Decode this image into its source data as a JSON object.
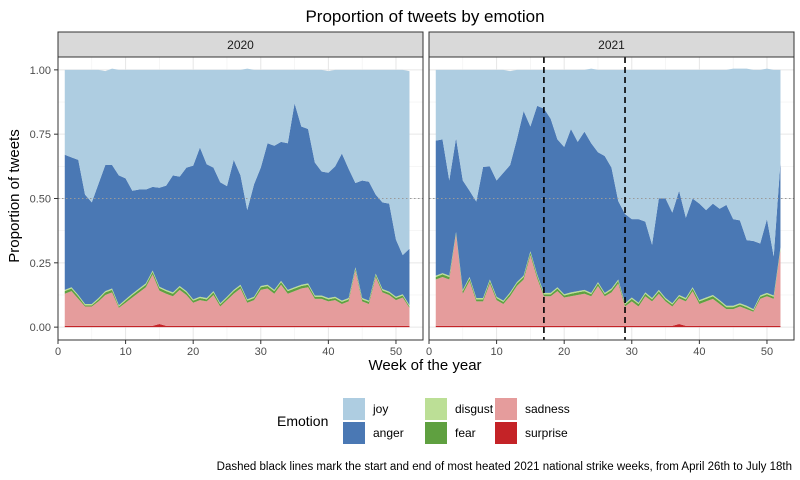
{
  "chart_data": {
    "type": "area",
    "title": "Proportion of tweets by emotion",
    "xlabel": "Week of the year",
    "ylabel": "Proportion of tweets",
    "xlim": [
      0,
      54
    ],
    "ylim": [
      -0.05,
      1.05
    ],
    "x_ticks": [
      0,
      10,
      20,
      30,
      40,
      50
    ],
    "y_ticks": [
      0.0,
      0.25,
      0.5,
      0.75,
      1.0
    ],
    "y_tick_labels": [
      "0.00",
      "0.25",
      "0.50",
      "0.75",
      "1.00"
    ],
    "reference_line_y": 0.5,
    "stack_order": [
      "surprise",
      "sadness",
      "fear",
      "disgust",
      "anger",
      "joy"
    ],
    "legend": {
      "title": "Emotion",
      "placement": "bottom",
      "items": [
        {
          "name": "joy",
          "color": "#aecde1"
        },
        {
          "name": "anger",
          "color": "#4a78b4"
        },
        {
          "name": "disgust",
          "color": "#bcdf96"
        },
        {
          "name": "fear",
          "color": "#5fa040"
        },
        {
          "name": "sadness",
          "color": "#e59c9c"
        },
        {
          "name": "surprise",
          "color": "#c42327"
        }
      ]
    },
    "panels": [
      {
        "label": "2020",
        "weeks": [
          1,
          2,
          3,
          4,
          5,
          6,
          7,
          8,
          9,
          10,
          11,
          12,
          13,
          14,
          15,
          16,
          17,
          18,
          19,
          20,
          21,
          22,
          23,
          24,
          25,
          26,
          27,
          28,
          29,
          30,
          31,
          32,
          33,
          34,
          35,
          36,
          37,
          38,
          39,
          40,
          41,
          42,
          43,
          44,
          45,
          46,
          47,
          48,
          49,
          50,
          51,
          52
        ],
        "surprise": [
          0.005,
          0.005,
          0.005,
          0.005,
          0.005,
          0.005,
          0.005,
          0.005,
          0.005,
          0.005,
          0.005,
          0.005,
          0.005,
          0.005,
          0.012,
          0.005,
          0.005,
          0.005,
          0.005,
          0.005,
          0.005,
          0.005,
          0.005,
          0.005,
          0.005,
          0.005,
          0.005,
          0.005,
          0.005,
          0.005,
          0.005,
          0.005,
          0.005,
          0.005,
          0.005,
          0.005,
          0.005,
          0.005,
          0.005,
          0.005,
          0.005,
          0.005,
          0.005,
          0.005,
          0.005,
          0.005,
          0.005,
          0.005,
          0.005,
          0.005,
          0.005,
          0.005
        ],
        "sadness": [
          0.125,
          0.135,
          0.105,
          0.075,
          0.075,
          0.095,
          0.12,
          0.13,
          0.07,
          0.09,
          0.11,
          0.13,
          0.15,
          0.2,
          0.13,
          0.125,
          0.115,
          0.14,
          0.12,
          0.09,
          0.1,
          0.095,
          0.12,
          0.075,
          0.1,
          0.125,
          0.145,
          0.09,
          0.1,
          0.14,
          0.145,
          0.125,
          0.16,
          0.125,
          0.135,
          0.145,
          0.15,
          0.105,
          0.105,
          0.095,
          0.1,
          0.085,
          0.095,
          0.215,
          0.095,
          0.085,
          0.19,
          0.13,
          0.12,
          0.1,
          0.11,
          0.07
        ],
        "fear": [
          0.01,
          0.01,
          0.01,
          0.005,
          0.005,
          0.008,
          0.01,
          0.01,
          0.005,
          0.008,
          0.01,
          0.01,
          0.01,
          0.01,
          0.01,
          0.01,
          0.01,
          0.01,
          0.01,
          0.008,
          0.008,
          0.008,
          0.01,
          0.008,
          0.008,
          0.01,
          0.01,
          0.008,
          0.008,
          0.01,
          0.01,
          0.01,
          0.01,
          0.01,
          0.01,
          0.01,
          0.01,
          0.008,
          0.008,
          0.008,
          0.008,
          0.008,
          0.008,
          0.008,
          0.008,
          0.008,
          0.008,
          0.008,
          0.008,
          0.008,
          0.008,
          0.005
        ],
        "disgust": [
          0.005,
          0.005,
          0.005,
          0.005,
          0.005,
          0.005,
          0.005,
          0.005,
          0.005,
          0.005,
          0.005,
          0.005,
          0.005,
          0.005,
          0.005,
          0.005,
          0.005,
          0.005,
          0.005,
          0.005,
          0.005,
          0.005,
          0.005,
          0.005,
          0.005,
          0.005,
          0.005,
          0.005,
          0.005,
          0.005,
          0.005,
          0.005,
          0.005,
          0.005,
          0.005,
          0.005,
          0.005,
          0.005,
          0.005,
          0.005,
          0.005,
          0.005,
          0.005,
          0.005,
          0.005,
          0.005,
          0.005,
          0.005,
          0.005,
          0.005,
          0.005,
          0.005
        ],
        "anger": [
          0.525,
          0.505,
          0.525,
          0.425,
          0.395,
          0.445,
          0.49,
          0.48,
          0.505,
          0.47,
          0.4,
          0.385,
          0.365,
          0.325,
          0.385,
          0.405,
          0.455,
          0.425,
          0.48,
          0.52,
          0.58,
          0.52,
          0.48,
          0.47,
          0.43,
          0.505,
          0.425,
          0.347,
          0.437,
          0.46,
          0.55,
          0.56,
          0.54,
          0.57,
          0.715,
          0.615,
          0.6,
          0.517,
          0.482,
          0.487,
          0.507,
          0.572,
          0.502,
          0.327,
          0.457,
          0.462,
          0.307,
          0.337,
          0.342,
          0.222,
          0.152,
          0.22
        ],
        "joy": [
          0.33,
          0.34,
          0.35,
          0.485,
          0.515,
          0.442,
          0.365,
          0.375,
          0.41,
          0.422,
          0.47,
          0.465,
          0.465,
          0.455,
          0.458,
          0.45,
          0.41,
          0.415,
          0.38,
          0.372,
          0.302,
          0.367,
          0.38,
          0.437,
          0.452,
          0.35,
          0.41,
          0.55,
          0.445,
          0.38,
          0.285,
          0.295,
          0.28,
          0.285,
          0.13,
          0.22,
          0.23,
          0.36,
          0.395,
          0.395,
          0.375,
          0.325,
          0.385,
          0.44,
          0.43,
          0.435,
          0.485,
          0.515,
          0.52,
          0.66,
          0.72,
          0.69
        ]
      },
      {
        "label": "2021",
        "weeks": [
          1,
          2,
          3,
          4,
          5,
          6,
          7,
          8,
          9,
          10,
          11,
          12,
          13,
          14,
          15,
          16,
          17,
          18,
          19,
          20,
          21,
          22,
          23,
          24,
          25,
          26,
          27,
          28,
          29,
          30,
          31,
          32,
          33,
          34,
          35,
          36,
          37,
          38,
          39,
          40,
          41,
          42,
          43,
          44,
          45,
          46,
          47,
          48,
          49,
          50,
          51,
          52
        ],
        "surprise": [
          0.005,
          0.005,
          0.005,
          0.005,
          0.005,
          0.005,
          0.005,
          0.005,
          0.005,
          0.005,
          0.005,
          0.005,
          0.005,
          0.005,
          0.005,
          0.005,
          0.005,
          0.005,
          0.005,
          0.005,
          0.005,
          0.005,
          0.005,
          0.005,
          0.005,
          0.005,
          0.005,
          0.005,
          0.005,
          0.005,
          0.005,
          0.005,
          0.005,
          0.005,
          0.005,
          0.005,
          0.012,
          0.005,
          0.005,
          0.005,
          0.005,
          0.005,
          0.005,
          0.005,
          0.005,
          0.005,
          0.005,
          0.005,
          0.005,
          0.005,
          0.005,
          0.005
        ],
        "sadness": [
          0.18,
          0.19,
          0.18,
          0.355,
          0.125,
          0.175,
          0.095,
          0.095,
          0.165,
          0.1,
          0.085,
          0.115,
          0.155,
          0.18,
          0.275,
          0.185,
          0.115,
          0.115,
          0.135,
          0.11,
          0.115,
          0.12,
          0.125,
          0.115,
          0.155,
          0.115,
          0.13,
          0.165,
          0.075,
          0.095,
          0.075,
          0.115,
          0.095,
          0.125,
          0.095,
          0.075,
          0.1,
          0.095,
          0.135,
          0.085,
          0.095,
          0.105,
          0.085,
          0.065,
          0.065,
          0.075,
          0.065,
          0.055,
          0.105,
          0.115,
          0.105,
          0.295
        ],
        "fear": [
          0.01,
          0.01,
          0.01,
          0.005,
          0.01,
          0.01,
          0.008,
          0.008,
          0.01,
          0.008,
          0.008,
          0.01,
          0.01,
          0.01,
          0.01,
          0.01,
          0.008,
          0.008,
          0.01,
          0.008,
          0.01,
          0.01,
          0.01,
          0.008,
          0.01,
          0.008,
          0.01,
          0.01,
          0.008,
          0.01,
          0.01,
          0.01,
          0.008,
          0.01,
          0.008,
          0.008,
          0.008,
          0.008,
          0.01,
          0.01,
          0.01,
          0.01,
          0.01,
          0.008,
          0.008,
          0.008,
          0.008,
          0.005,
          0.008,
          0.008,
          0.008,
          0.005
        ],
        "disgust": [
          0.005,
          0.005,
          0.005,
          0.005,
          0.005,
          0.005,
          0.005,
          0.005,
          0.005,
          0.005,
          0.005,
          0.005,
          0.005,
          0.005,
          0.005,
          0.005,
          0.005,
          0.005,
          0.005,
          0.005,
          0.005,
          0.005,
          0.005,
          0.005,
          0.005,
          0.005,
          0.005,
          0.005,
          0.005,
          0.005,
          0.005,
          0.005,
          0.005,
          0.005,
          0.005,
          0.005,
          0.005,
          0.005,
          0.005,
          0.005,
          0.005,
          0.005,
          0.005,
          0.005,
          0.005,
          0.005,
          0.005,
          0.005,
          0.005,
          0.005,
          0.005,
          0.005
        ],
        "anger": [
          0.525,
          0.52,
          0.37,
          0.365,
          0.425,
          0.335,
          0.375,
          0.51,
          0.44,
          0.452,
          0.497,
          0.495,
          0.555,
          0.64,
          0.485,
          0.655,
          0.717,
          0.677,
          0.575,
          0.572,
          0.635,
          0.58,
          0.615,
          0.582,
          0.505,
          0.532,
          0.47,
          0.305,
          0.347,
          0.305,
          0.325,
          0.275,
          0.207,
          0.355,
          0.387,
          0.352,
          0.405,
          0.312,
          0.345,
          0.375,
          0.34,
          0.355,
          0.355,
          0.392,
          0.337,
          0.322,
          0.255,
          0.265,
          0.202,
          0.287,
          0.152,
          0.335
        ],
        "joy": [
          0.275,
          0.27,
          0.43,
          0.265,
          0.43,
          0.47,
          0.512,
          0.377,
          0.375,
          0.43,
          0.4,
          0.365,
          0.27,
          0.16,
          0.22,
          0.14,
          0.15,
          0.19,
          0.27,
          0.3,
          0.23,
          0.28,
          0.24,
          0.29,
          0.32,
          0.335,
          0.38,
          0.51,
          0.56,
          0.58,
          0.58,
          0.59,
          0.68,
          0.5,
          0.5,
          0.555,
          0.47,
          0.575,
          0.5,
          0.52,
          0.545,
          0.52,
          0.54,
          0.525,
          0.585,
          0.59,
          0.667,
          0.665,
          0.675,
          0.585,
          0.725,
          0.355
        ]
      }
    ],
    "vertical_lines": [
      {
        "panel": "2021",
        "week": 17,
        "style": "dashed",
        "color": "#000000"
      },
      {
        "panel": "2021",
        "week": 29,
        "style": "dashed",
        "color": "#000000"
      }
    ],
    "caption": "Dashed black lines mark the start and end of most heated 2021 national strike weeks, from April 26th to July 18th"
  }
}
